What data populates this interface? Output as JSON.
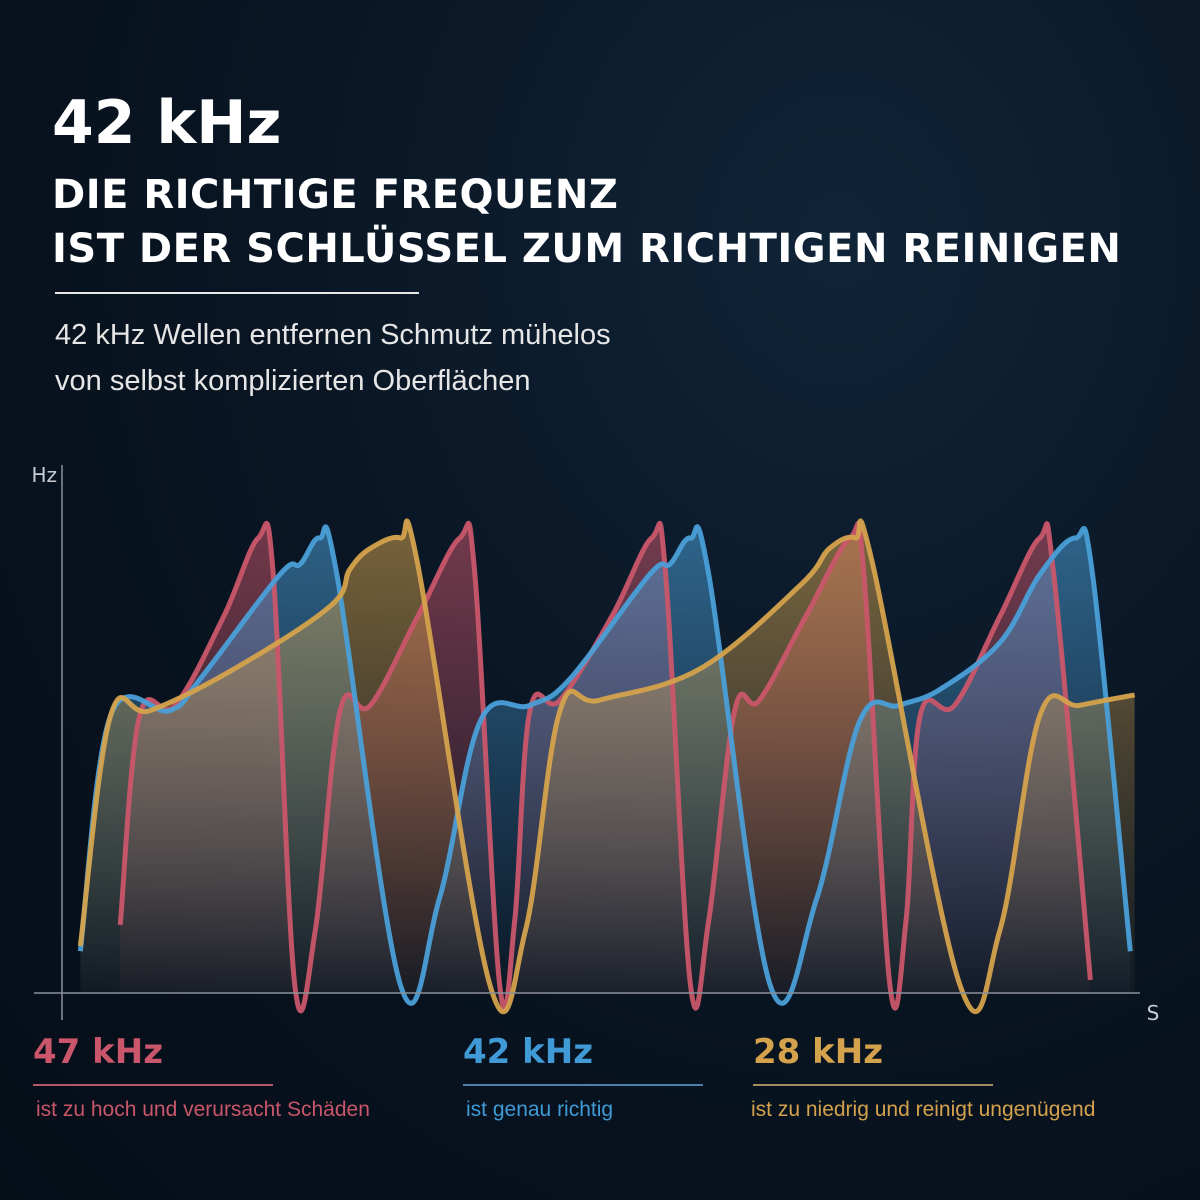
{
  "header": {
    "title": "42 kHz",
    "subtitle_lines": [
      "DIE RICHTIGE FREQUENZ",
      "IST DER SCHLÜSSEL ZUM RICHTIGEN REINIGEN"
    ],
    "description_lines": [
      "42 kHz Wellen entfernen Schmutz mühelos",
      "von selbst komplizierten Oberflächen"
    ]
  },
  "chart_data": {
    "type": "area",
    "title": "",
    "xlabel": "S",
    "ylabel": "Hz",
    "xlim": [
      0,
      100
    ],
    "ylim": [
      0,
      100
    ],
    "grid": false,
    "legend": "bottom",
    "series": [
      {
        "name": "47 kHz",
        "color": "#c9566a",
        "points": [
          [
            5.4,
            13
          ],
          [
            7.2,
            53
          ],
          [
            10.5,
            55
          ],
          [
            15,
            72
          ],
          [
            18.2,
            87
          ],
          [
            19.6,
            80
          ],
          [
            21.6,
            1.5
          ],
          [
            23.5,
            12
          ],
          [
            25.8,
            54
          ],
          [
            28.6,
            55
          ],
          [
            33,
            72
          ],
          [
            36.9,
            87
          ],
          [
            38.3,
            80
          ],
          [
            40.6,
            1.5
          ],
          [
            42,
            14
          ],
          [
            43.4,
            54
          ],
          [
            46.2,
            56
          ],
          [
            51,
            72
          ],
          [
            54.7,
            87
          ],
          [
            56,
            80
          ],
          [
            58.3,
            1.5
          ],
          [
            60,
            14
          ],
          [
            62.4,
            54
          ],
          [
            64.7,
            56
          ],
          [
            69,
            72
          ],
          [
            73.1,
            87
          ],
          [
            74.4,
            80
          ],
          [
            76.8,
            1.5
          ],
          [
            78.3,
            14
          ],
          [
            79.6,
            53
          ],
          [
            82.8,
            55
          ],
          [
            87,
            72
          ],
          [
            90.7,
            87
          ],
          [
            92,
            80
          ],
          [
            95.4,
            2.5
          ]
        ]
      },
      {
        "name": "42 kHz",
        "color": "#4a9fd8",
        "points": [
          [
            1.7,
            8
          ],
          [
            4.5,
            53
          ],
          [
            10,
            54
          ],
          [
            12.8,
            60
          ],
          [
            20.2,
            80
          ],
          [
            22.1,
            82
          ],
          [
            23.9,
            87
          ],
          [
            25.5,
            80
          ],
          [
            31.4,
            1.5
          ],
          [
            35,
            18
          ],
          [
            38.8,
            52
          ],
          [
            43.4,
            55
          ],
          [
            47.1,
            60
          ],
          [
            54.5,
            80
          ],
          [
            56.4,
            82
          ],
          [
            58.3,
            87
          ],
          [
            60,
            80
          ],
          [
            65.7,
            1.5
          ],
          [
            70,
            18
          ],
          [
            74,
            52
          ],
          [
            77.7,
            55
          ],
          [
            81.4,
            58
          ],
          [
            87,
            67
          ],
          [
            90.7,
            80
          ],
          [
            94,
            87
          ],
          [
            95.6,
            80
          ],
          [
            99.1,
            8
          ]
        ]
      },
      {
        "name": "28 kHz",
        "color": "#d4a24c",
        "points": [
          [
            1.7,
            9
          ],
          [
            4.5,
            53
          ],
          [
            8.2,
            54
          ],
          [
            16,
            62
          ],
          [
            24.9,
            74
          ],
          [
            26.7,
            81
          ],
          [
            28.6,
            85
          ],
          [
            31.4,
            87
          ],
          [
            33,
            82
          ],
          [
            39.7,
            1.5
          ],
          [
            43,
            12
          ],
          [
            46.2,
            54
          ],
          [
            49.9,
            56
          ],
          [
            59.2,
            62
          ],
          [
            68.5,
            78
          ],
          [
            71.2,
            85
          ],
          [
            73.6,
            87
          ],
          [
            75.2,
            82
          ],
          [
            83.3,
            1.5
          ],
          [
            87,
            12
          ],
          [
            90.7,
            53
          ],
          [
            94.4,
            55
          ],
          [
            99.5,
            57
          ]
        ]
      }
    ]
  },
  "legend": [
    {
      "label": "47 kHz",
      "note": "ist zu hoch und verursacht Schäden",
      "color": "#c9566a"
    },
    {
      "label": "42 kHz",
      "note": "ist genau richtig",
      "color": "#3f9ad6"
    },
    {
      "label": "28 kHz",
      "note": "ist zu niedrig und reinigt ungenügend",
      "color": "#d4a24c"
    }
  ]
}
